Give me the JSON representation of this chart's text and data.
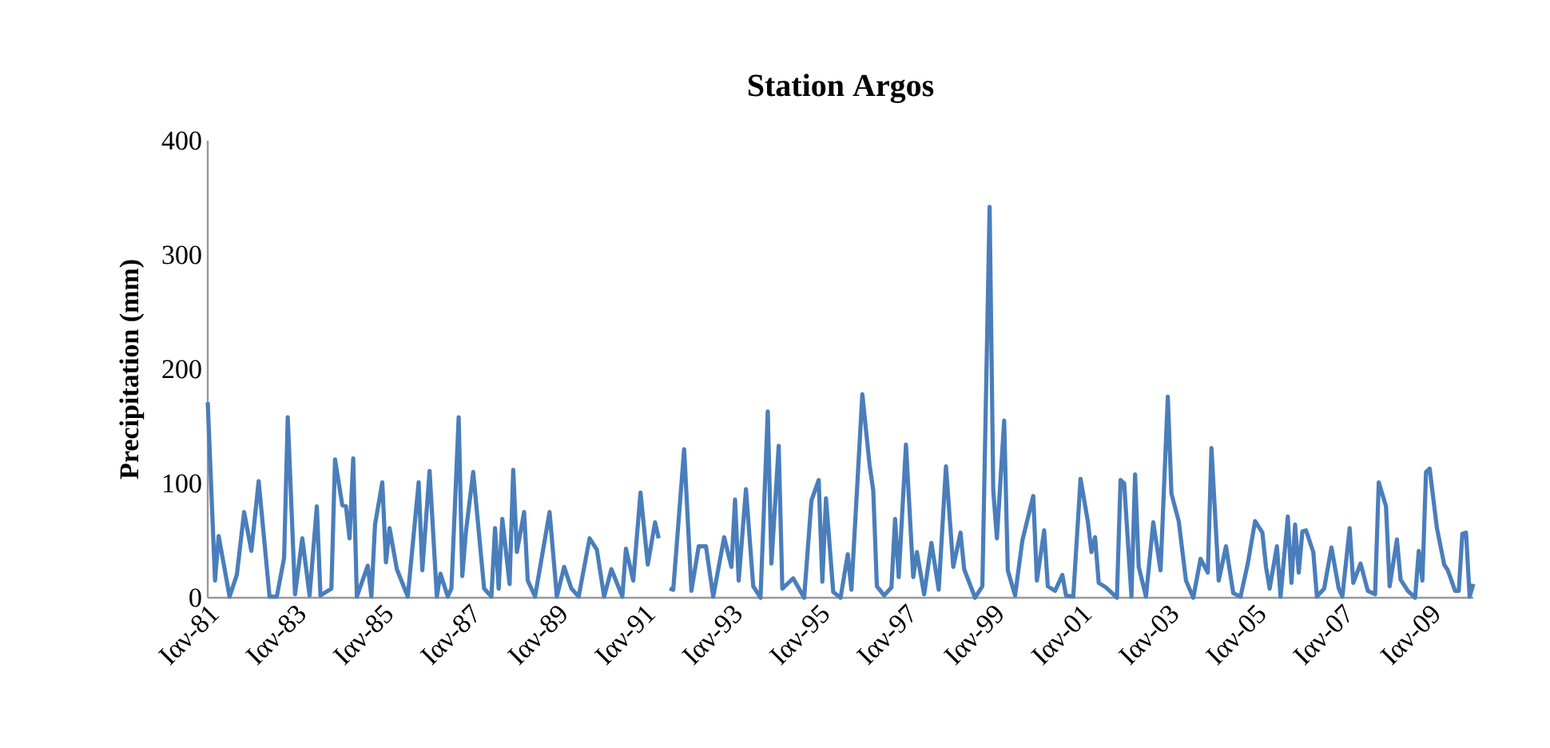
{
  "chart_data": {
    "type": "line",
    "title": "Station Argos",
    "ylabel": "Precipitation (mm)",
    "x": [
      "1981-01",
      "1981-03",
      "1981-04",
      "1981-07",
      "1981-09",
      "1981-11",
      "1982-01",
      "1982-03",
      "1982-06",
      "1982-08",
      "1982-10",
      "1982-11",
      "1983-01",
      "1983-03",
      "1983-05",
      "1983-07",
      "1983-08",
      "1983-11",
      "1983-12",
      "1984-02",
      "1984-03",
      "1984-04",
      "1984-05",
      "1984-06",
      "1984-09",
      "1984-10",
      "1984-11",
      "1985-01",
      "1985-02",
      "1985-03",
      "1985-05",
      "1985-08",
      "1985-11",
      "1985-12",
      "1986-02",
      "1986-04",
      "1986-05",
      "1986-07",
      "1986-08",
      "1986-10",
      "1986-11",
      "1986-12",
      "1987-02",
      "1987-05",
      "1987-07",
      "1987-08",
      "1987-09",
      "1987-10",
      "1987-12",
      "1988-01",
      "1988-02",
      "1988-04",
      "1988-05",
      "1988-07",
      "1988-11",
      "1989-01",
      "1989-03",
      "1989-05",
      "1989-07",
      "1989-10",
      "1989-12",
      "1990-02",
      "1990-04",
      "1990-07",
      "1990-08",
      "1990-10",
      "1990-12",
      "1991-02",
      "1991-04",
      "1991-05",
      "1991-06",
      "1991-08",
      "1991-09",
      "1991-12",
      "1992-02",
      "1992-04",
      "1992-06",
      "1992-08",
      "1992-11",
      "1993-01",
      "1993-02",
      "1993-03",
      "1993-05",
      "1993-07",
      "1993-09",
      "1993-11",
      "1993-12",
      "1994-02",
      "1994-03",
      "1994-06",
      "1994-09",
      "1994-11",
      "1995-01",
      "1995-02",
      "1995-03",
      "1995-05",
      "1995-07",
      "1995-09",
      "1995-10",
      "1996-01",
      "1996-03",
      "1996-04",
      "1996-05",
      "1996-07",
      "1996-09",
      "1996-10",
      "1996-11",
      "1997-01",
      "1997-03",
      "1997-04",
      "1997-06",
      "1997-08",
      "1997-10",
      "1997-12",
      "1998-02",
      "1998-04",
      "1998-05",
      "1998-08",
      "1998-10",
      "1998-12",
      "1999-01",
      "1999-02",
      "1999-04",
      "1999-05",
      "1999-07",
      "1999-09",
      "1999-12",
      "2000-01",
      "2000-03",
      "2000-04",
      "2000-06",
      "2000-08",
      "2000-09",
      "2000-11",
      "2001-01",
      "2001-03",
      "2001-04",
      "2001-05",
      "2001-06",
      "2001-08",
      "2001-11",
      "2001-12",
      "2002-01",
      "2002-03",
      "2002-04",
      "2002-05",
      "2002-07",
      "2002-09",
      "2002-11",
      "2003-01",
      "2003-02",
      "2003-04",
      "2003-06",
      "2003-08",
      "2003-10",
      "2003-12",
      "2004-01",
      "2004-03",
      "2004-05",
      "2004-07",
      "2004-09",
      "2004-11",
      "2005-01",
      "2005-03",
      "2005-04",
      "2005-05",
      "2005-07",
      "2005-08",
      "2005-10",
      "2005-11",
      "2005-12",
      "2006-01",
      "2006-02",
      "2006-03",
      "2006-05",
      "2006-06",
      "2006-08",
      "2006-10",
      "2006-12",
      "2007-01",
      "2007-03",
      "2007-04",
      "2007-06",
      "2007-08",
      "2007-10",
      "2007-11",
      "2008-01",
      "2008-02",
      "2008-04",
      "2008-05",
      "2008-07",
      "2008-09",
      "2008-10",
      "2008-11",
      "2008-12",
      "2009-01",
      "2009-03",
      "2009-05",
      "2009-06",
      "2009-08",
      "2009-09",
      "2009-10",
      "2009-11",
      "2009-12",
      "2010-01"
    ],
    "series": [
      {
        "color": "#4a7ebb",
        "values": [
          171,
          15,
          54,
          1,
          20,
          75,
          41,
          102,
          1,
          1,
          35,
          158,
          3,
          52,
          2,
          80,
          2,
          8,
          121,
          81,
          80,
          52,
          122,
          1,
          28,
          1,
          64,
          101,
          31,
          61,
          25,
          1,
          101,
          24,
          111,
          1,
          21,
          1,
          8,
          158,
          19,
          58,
          110,
          8,
          1,
          61,
          8,
          69,
          12,
          112,
          40,
          75,
          15,
          1,
          75,
          1,
          27,
          8,
          1,
          52,
          42,
          1,
          25,
          1,
          43,
          15,
          92,
          29,
          66,
          52,
          null,
          8,
          7,
          130,
          6,
          45,
          45,
          1,
          53,
          27,
          86,
          15,
          95,
          10,
          0,
          163,
          30,
          133,
          8,
          17,
          0,
          85,
          103,
          14,
          87,
          5,
          0,
          38,
          7,
          178,
          116,
          94,
          10,
          2,
          9,
          69,
          18,
          134,
          18,
          40,
          3,
          48,
          7,
          115,
          27,
          57,
          25,
          0,
          10,
          342,
          94,
          52,
          155,
          24,
          2,
          50,
          89,
          15,
          59,
          10,
          6,
          20,
          2,
          1,
          104,
          67,
          40,
          53,
          13,
          9,
          0,
          103,
          100,
          1,
          108,
          27,
          1,
          66,
          24,
          176,
          91,
          67,
          15,
          0,
          34,
          22,
          131,
          15,
          45,
          4,
          1,
          30,
          67,
          57,
          27,
          8,
          45,
          1,
          71,
          13,
          64,
          22,
          58,
          59,
          40,
          1,
          8,
          44,
          8,
          1,
          61,
          13,
          30,
          6,
          3,
          101,
          80,
          10,
          51,
          16,
          6,
          0,
          41,
          15,
          110,
          113,
          61,
          29,
          24,
          6,
          6,
          56,
          57,
          1,
          12
        ]
      }
    ],
    "xlim": [
      "1981-01",
      "2010-01"
    ],
    "xticks": [
      {
        "value": "1981-01",
        "label": "Ιαν-81"
      },
      {
        "value": "1983-01",
        "label": "Ιαν-83"
      },
      {
        "value": "1985-01",
        "label": "Ιαν-85"
      },
      {
        "value": "1987-01",
        "label": "Ιαν-87"
      },
      {
        "value": "1989-01",
        "label": "Ιαν-89"
      },
      {
        "value": "1991-01",
        "label": "Ιαν-91"
      },
      {
        "value": "1993-01",
        "label": "Ιαν-93"
      },
      {
        "value": "1995-01",
        "label": "Ιαν-95"
      },
      {
        "value": "1997-01",
        "label": "Ιαν-97"
      },
      {
        "value": "1999-01",
        "label": "Ιαν-99"
      },
      {
        "value": "2001-01",
        "label": "Ιαν-01"
      },
      {
        "value": "2003-01",
        "label": "Ιαν-03"
      },
      {
        "value": "2005-01",
        "label": "Ιαν-05"
      },
      {
        "value": "2007-01",
        "label": "Ιαν-07"
      },
      {
        "value": "2009-01",
        "label": "Ιαν-09"
      }
    ],
    "ylim": [
      0,
      400
    ],
    "yticks": [
      0,
      100,
      200,
      300,
      400
    ],
    "grid": false,
    "marker": "none",
    "line_style": "solid"
  }
}
